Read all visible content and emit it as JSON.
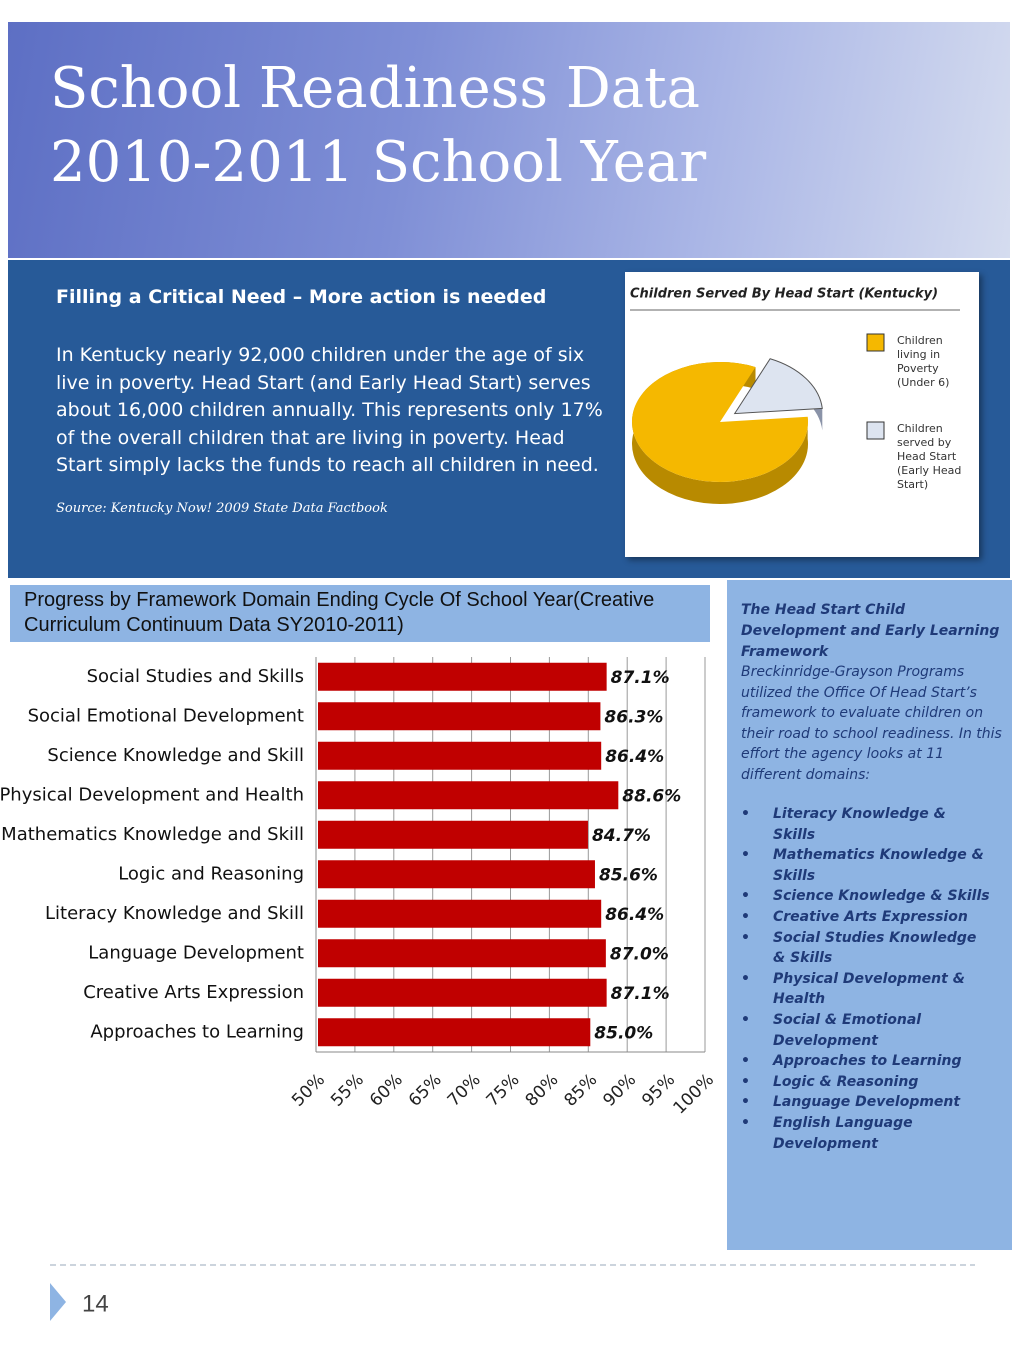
{
  "header": {
    "title": [
      "School Readiness Data",
      "2010-2011 School Year"
    ]
  },
  "intro": {
    "heading": "Filling a Critical Need – More action is needed",
    "text": "In Kentucky nearly 92,000 children under the age of six live in poverty.  Head Start (and Early Head Start) serves about 16,000 children annually.  This represents only 17% of the overall children that are living in poverty.   Head Start simply lacks the funds to reach all children in need.",
    "source": "Source: Kentucky Now!  2009 State Data Factbook"
  },
  "chart_data": [
    {
      "type": "pie",
      "title": "Children Served By Head Start (Kentucky)",
      "categories": [
        "Children living in Poverty (Under 6)",
        "Children served by Head Start (Early Head Start)"
      ],
      "values": [
        83,
        17
      ],
      "colors": [
        "#f5b800",
        "#dde4f0"
      ]
    },
    {
      "type": "hbar",
      "title": "Progress by Framework Domain Ending Cycle Of School Year(Creative Curriculum Continuum Data SY2010-2011)",
      "categories": [
        "Social Studies and Skills",
        "Social Emotional Development",
        "Science Knowledge and Skill",
        "Physical Development and Health",
        "Mathematics Knowledge and Skill",
        "Logic and Reasoning",
        "Literacy Knowledge and Skill",
        "Language Development",
        "Creative Arts Expression",
        "Approaches to Learning"
      ],
      "values": [
        87.1,
        86.3,
        86.4,
        88.6,
        84.7,
        85.6,
        86.4,
        87.0,
        87.1,
        85.0
      ],
      "value_labels": [
        "87.1%",
        "86.3%",
        "86.4%",
        "88.6%",
        "84.7%",
        "85.6%",
        "86.4%",
        "87.0%",
        "87.1%",
        "85.0%"
      ],
      "color": "#c00000",
      "grid": true,
      "xlim": [
        50,
        100
      ],
      "xticks": [
        {
          "value": 50,
          "label": "50%"
        },
        {
          "value": 55,
          "label": "55%"
        },
        {
          "value": 60,
          "label": "60%"
        },
        {
          "value": 65,
          "label": "65%"
        },
        {
          "value": 70,
          "label": "70%"
        },
        {
          "value": 75,
          "label": "75%"
        },
        {
          "value": 80,
          "label": "80%"
        },
        {
          "value": 85,
          "label": "85%"
        },
        {
          "value": 90,
          "label": "90%"
        },
        {
          "value": 95,
          "label": "95%"
        },
        {
          "value": 100,
          "label": "100%"
        }
      ]
    }
  ],
  "sidebar": {
    "heading": "The Head Start Child Development and Early Learning Framework",
    "text": "Breckinridge-Grayson Programs utilized the Office Of Head Start’s framework to evaluate children on their road to school readiness.  In this effort the agency looks at 11 different domains:",
    "items": [
      "Literacy Knowledge & Skills",
      "Mathematics Knowledge & Skills",
      "Science Knowledge & Skills",
      "Creative Arts Expression",
      "Social Studies Knowledge & Skills",
      "Physical Development & Health",
      "Social & Emotional Development",
      "Approaches to Learning",
      "Logic & Reasoning",
      "Language Development",
      "English Language Development"
    ]
  },
  "footer": {
    "page_number": "14"
  }
}
